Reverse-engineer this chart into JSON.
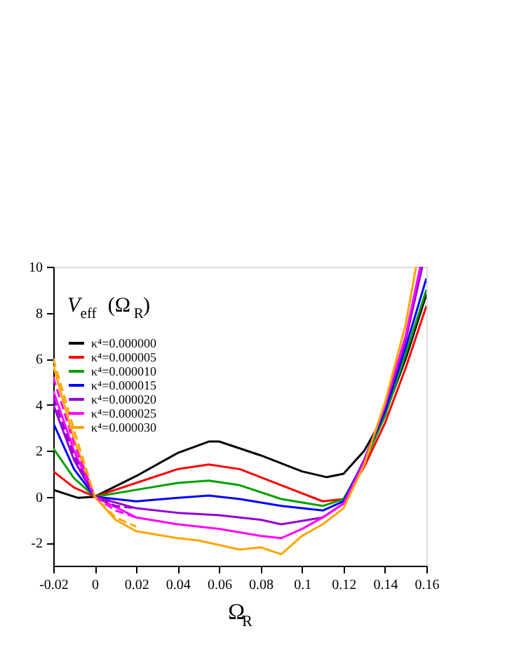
{
  "chart_data": {
    "type": "line",
    "xlabel": "Ω$_{R}$",
    "annotations": [
      "V$_{eff}$(Ω$_{R}$)"
    ],
    "xlim": [
      -0.02,
      0.16
    ],
    "xticks": [
      {
        "value": -0.02,
        "label": "-0.02"
      },
      0,
      0.02,
      0.04,
      0.06,
      0.08,
      {
        "value": 0.1,
        "label": "0.1"
      },
      0.12,
      0.14,
      0.16
    ],
    "ylim": [
      -3,
      10
    ],
    "yticks": [
      -2,
      0,
      2,
      4,
      6,
      8,
      10
    ],
    "grid": false,
    "legend": "top left",
    "line_style": "solid",
    "x": [
      -0.02,
      -0.01,
      0,
      0.02,
      0.04,
      0.055,
      0.07,
      0.09,
      0.11,
      0.12,
      0.13,
      0.14,
      0.15,
      0.16
    ],
    "series": [
      {
        "name": "κ⁴=0.000000",
        "color": "#000000",
        "x": [
          -0.02,
          -0.008,
          0,
          0.02,
          0.04,
          0.055,
          0.06,
          0.08,
          0.1,
          0.112,
          0.12,
          0.13,
          0.14,
          0.15,
          0.16
        ],
        "values": [
          0.3,
          -0.05,
          0,
          0.9,
          1.9,
          2.4,
          2.4,
          1.8,
          1.1,
          0.85,
          1.0,
          2.0,
          3.6,
          6.0,
          8.8
        ]
      },
      {
        "name": "κ⁴=0.000005",
        "color": "#ff0000",
        "values": [
          1.1,
          0.4,
          0,
          0.6,
          1.2,
          1.4,
          1.2,
          0.5,
          -0.2,
          -0.1,
          1.3,
          3.2,
          5.6,
          8.3
        ]
      },
      {
        "name": "κ⁴=0.000010",
        "color": "#00a000",
        "values": [
          2.1,
          0.8,
          0,
          0.3,
          0.6,
          0.7,
          0.5,
          -0.1,
          -0.4,
          -0.1,
          1.5,
          3.5,
          6.2,
          9.0
        ]
      },
      {
        "name": "κ⁴=0.000015",
        "color": "#0000ff",
        "values": [
          3.2,
          1.2,
          0,
          -0.2,
          -0.05,
          0.05,
          -0.1,
          -0.4,
          -0.6,
          -0.2,
          1.6,
          3.7,
          6.5,
          9.5
        ]
      },
      {
        "name": "κ⁴=0.000020",
        "color": "#9400d3",
        "x": [
          -0.02,
          -0.01,
          0,
          0.02,
          0.04,
          0.06,
          0.08,
          0.09,
          0.11,
          0.12,
          0.13,
          0.14,
          0.15,
          0.158
        ],
        "values": [
          4.0,
          1.6,
          0,
          -0.5,
          -0.7,
          -0.8,
          -1.0,
          -1.2,
          -0.9,
          -0.3,
          1.6,
          3.9,
          6.8,
          10
        ]
      },
      {
        "name": "κ⁴=0.000025",
        "color": "#ff00ff",
        "x": [
          -0.02,
          -0.01,
          0,
          0.02,
          0.04,
          0.06,
          0.08,
          0.09,
          0.1,
          0.11,
          0.12,
          0.13,
          0.14,
          0.15,
          0.157
        ],
        "values": [
          4.6,
          2.0,
          0,
          -0.9,
          -1.2,
          -1.4,
          -1.7,
          -1.8,
          -1.4,
          -0.9,
          -0.3,
          1.5,
          4.0,
          7.0,
          10
        ]
      },
      {
        "name": "κ⁴=0.000030",
        "color": "#ffa500",
        "x": [
          -0.02,
          -0.01,
          0,
          0.01,
          0.02,
          0.04,
          0.05,
          0.07,
          0.08,
          0.09,
          0.1,
          0.11,
          0.12,
          0.13,
          0.14,
          0.15,
          0.155
        ],
        "values": [
          5.7,
          2.5,
          0,
          -1.0,
          -1.5,
          -1.8,
          -1.9,
          -2.3,
          -2.2,
          -2.5,
          -1.7,
          -1.2,
          -0.5,
          1.4,
          4.1,
          7.5,
          10
        ]
      },
      {
        "color": "#9400d3",
        "line_style": "dashed",
        "x": [
          -0.02,
          -0.01,
          0,
          0.01,
          0.02
        ],
        "values": [
          4.3,
          1.8,
          0,
          -0.4,
          -0.5
        ]
      },
      {
        "color": "#ff00ff",
        "line_style": "dashed",
        "x": [
          -0.02,
          -0.01,
          0,
          0.01,
          0.02
        ],
        "values": [
          5.2,
          2.3,
          0,
          -0.6,
          -0.9
        ]
      },
      {
        "color": "#ffa500",
        "line_style": "dashed",
        "x": [
          -0.02,
          -0.01,
          0,
          0.01,
          0.02
        ],
        "values": [
          6.0,
          2.9,
          0,
          -0.9,
          -1.3
        ]
      }
    ]
  }
}
